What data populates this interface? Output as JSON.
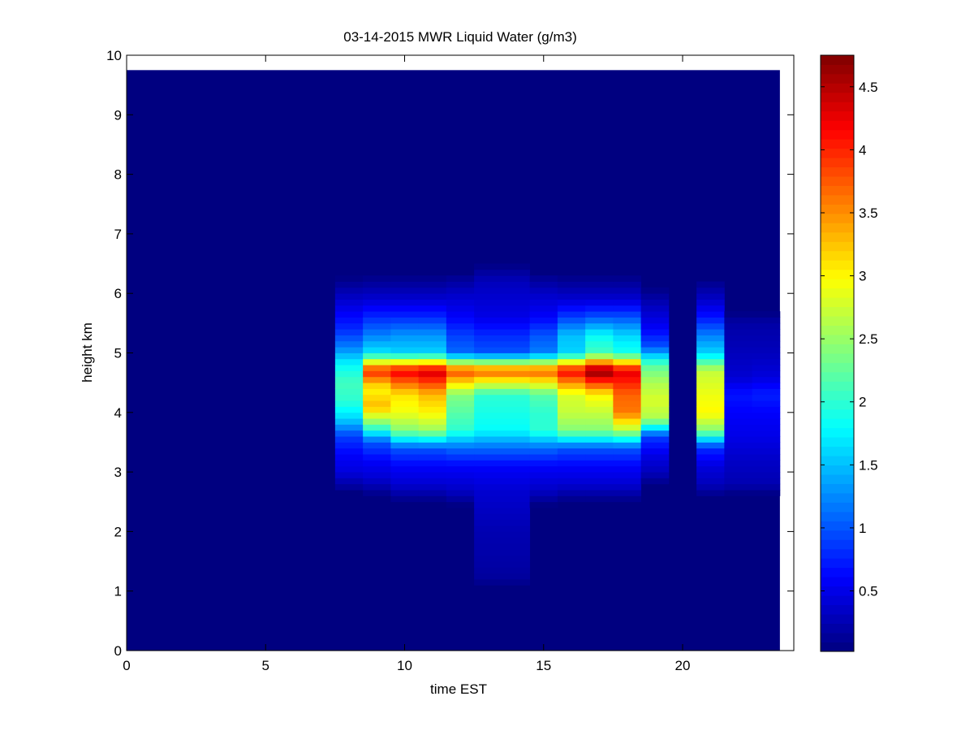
{
  "chart_data": {
    "type": "heatmap",
    "title": "03-14-2015 MWR Liquid Water (g/m3)",
    "xlabel": "time EST",
    "ylabel": "height km",
    "xlim": [
      0,
      24
    ],
    "ylim": [
      0,
      10
    ],
    "x_ticks": [
      "0",
      "5",
      "10",
      "15",
      "20"
    ],
    "y_ticks": [
      "0",
      "1",
      "2",
      "3",
      "4",
      "5",
      "6",
      "7",
      "8",
      "9",
      "10"
    ],
    "colorbar": {
      "colormap": "jet",
      "range": [
        0.02,
        4.75
      ],
      "ticks": [
        "0.5",
        "1",
        "1.5",
        "2",
        "2.5",
        "3",
        "3.5",
        "4",
        "4.5"
      ]
    },
    "data_extent": {
      "x_min": 0,
      "x_max": 23.5,
      "y_min": 0,
      "y_max": 9.75
    },
    "columns": [
      {
        "t": 8,
        "profile": [
          [
            3.0,
            0.45
          ],
          [
            3.3,
            0.6
          ],
          [
            3.6,
            0.9
          ],
          [
            3.9,
            1.6
          ],
          [
            4.2,
            2.0
          ],
          [
            4.5,
            2.1
          ],
          [
            4.8,
            1.8
          ],
          [
            5.1,
            1.2
          ],
          [
            5.4,
            0.8
          ],
          [
            5.7,
            0.55
          ]
        ]
      },
      {
        "t": 9,
        "profile": [
          [
            2.9,
            0.4
          ],
          [
            3.2,
            0.6
          ],
          [
            3.5,
            1.0
          ],
          [
            3.8,
            2.3
          ],
          [
            4.1,
            3.3
          ],
          [
            4.4,
            3.0
          ],
          [
            4.7,
            4.0
          ],
          [
            5.0,
            1.7
          ],
          [
            5.3,
            1.2
          ],
          [
            5.6,
            0.8
          ],
          [
            5.9,
            0.4
          ]
        ]
      },
      {
        "t": 10,
        "profile": [
          [
            2.8,
            0.4
          ],
          [
            3.1,
            0.6
          ],
          [
            3.4,
            1.0
          ],
          [
            3.7,
            2.4
          ],
          [
            4.0,
            2.9
          ],
          [
            4.3,
            3.1
          ],
          [
            4.7,
            4.25
          ],
          [
            5.0,
            1.6
          ],
          [
            5.3,
            1.3
          ],
          [
            5.6,
            0.8
          ],
          [
            5.9,
            0.4
          ]
        ]
      },
      {
        "t": 11,
        "profile": [
          [
            2.8,
            0.4
          ],
          [
            3.1,
            0.6
          ],
          [
            3.4,
            1.0
          ],
          [
            3.7,
            2.5
          ],
          [
            4.0,
            3.0
          ],
          [
            4.3,
            3.3
          ],
          [
            4.7,
            4.4
          ],
          [
            5.0,
            1.6
          ],
          [
            5.3,
            1.3
          ],
          [
            5.6,
            0.8
          ],
          [
            5.9,
            0.4
          ]
        ]
      },
      {
        "t": 12,
        "profile": [
          [
            2.7,
            0.35
          ],
          [
            3.1,
            0.6
          ],
          [
            3.4,
            1.1
          ],
          [
            3.7,
            2.0
          ],
          [
            4.0,
            2.2
          ],
          [
            4.3,
            2.4
          ],
          [
            4.7,
            3.85
          ],
          [
            5.0,
            1.1
          ],
          [
            5.3,
            0.9
          ],
          [
            5.6,
            0.6
          ],
          [
            6.0,
            0.35
          ]
        ]
      },
      {
        "t": 13,
        "profile": [
          [
            1.2,
            0.15
          ],
          [
            1.5,
            0.2
          ],
          [
            2.0,
            0.25
          ],
          [
            2.7,
            0.4
          ],
          [
            3.1,
            0.6
          ],
          [
            3.4,
            1.1
          ],
          [
            3.7,
            1.8
          ],
          [
            4.0,
            1.9
          ],
          [
            4.3,
            2.0
          ],
          [
            4.7,
            3.75
          ],
          [
            5.0,
            1.0
          ],
          [
            5.3,
            0.8
          ],
          [
            5.6,
            0.5
          ],
          [
            6.2,
            0.3
          ]
        ]
      },
      {
        "t": 14,
        "profile": [
          [
            1.2,
            0.15
          ],
          [
            1.5,
            0.2
          ],
          [
            2.0,
            0.25
          ],
          [
            2.7,
            0.4
          ],
          [
            3.1,
            0.6
          ],
          [
            3.4,
            1.1
          ],
          [
            3.7,
            1.8
          ],
          [
            4.0,
            1.9
          ],
          [
            4.3,
            2.0
          ],
          [
            4.7,
            3.75
          ],
          [
            5.0,
            1.0
          ],
          [
            5.3,
            0.8
          ],
          [
            5.6,
            0.5
          ],
          [
            6.2,
            0.3
          ]
        ]
      },
      {
        "t": 15,
        "profile": [
          [
            2.7,
            0.35
          ],
          [
            3.1,
            0.6
          ],
          [
            3.4,
            1.1
          ],
          [
            3.7,
            2.0
          ],
          [
            4.0,
            2.0
          ],
          [
            4.3,
            2.2
          ],
          [
            4.7,
            3.75
          ],
          [
            5.0,
            1.2
          ],
          [
            5.3,
            1.0
          ],
          [
            5.6,
            0.6
          ],
          [
            6.0,
            0.35
          ]
        ]
      },
      {
        "t": 16,
        "profile": [
          [
            2.8,
            0.4
          ],
          [
            3.1,
            0.6
          ],
          [
            3.4,
            1.0
          ],
          [
            3.7,
            2.4
          ],
          [
            4.0,
            2.7
          ],
          [
            4.3,
            2.8
          ],
          [
            4.7,
            4.2
          ],
          [
            5.0,
            1.6
          ],
          [
            5.3,
            1.5
          ],
          [
            5.6,
            0.9
          ],
          [
            5.9,
            0.4
          ]
        ]
      },
      {
        "t": 17,
        "profile": [
          [
            2.8,
            0.4
          ],
          [
            3.1,
            0.6
          ],
          [
            3.4,
            1.0
          ],
          [
            3.7,
            2.4
          ],
          [
            4.0,
            2.7
          ],
          [
            4.3,
            3.0
          ],
          [
            4.7,
            4.75
          ],
          [
            5.0,
            2.1
          ],
          [
            5.3,
            1.8
          ],
          [
            5.6,
            1.0
          ],
          [
            5.9,
            0.4
          ]
        ]
      },
      {
        "t": 18,
        "profile": [
          [
            2.8,
            0.4
          ],
          [
            3.1,
            0.6
          ],
          [
            3.4,
            1.0
          ],
          [
            3.7,
            2.6
          ],
          [
            4.0,
            3.6
          ],
          [
            4.3,
            3.7
          ],
          [
            4.7,
            4.3
          ],
          [
            5.0,
            1.9
          ],
          [
            5.3,
            1.6
          ],
          [
            5.6,
            1.0
          ],
          [
            5.9,
            0.4
          ]
        ]
      },
      {
        "t": 19,
        "profile": [
          [
            3.0,
            0.3
          ],
          [
            3.3,
            0.5
          ],
          [
            3.6,
            0.9
          ],
          [
            3.9,
            2.6
          ],
          [
            4.2,
            2.8
          ],
          [
            4.5,
            2.6
          ],
          [
            4.8,
            2.2
          ],
          [
            5.1,
            1.0
          ],
          [
            5.4,
            0.6
          ],
          [
            5.8,
            0.3
          ]
        ]
      },
      {
        "t": 21,
        "profile": [
          [
            2.8,
            0.3
          ],
          [
            3.1,
            0.45
          ],
          [
            3.4,
            0.8
          ],
          [
            3.7,
            2.4
          ],
          [
            4.0,
            3.0
          ],
          [
            4.3,
            2.9
          ],
          [
            4.7,
            2.7
          ],
          [
            5.0,
            1.6
          ],
          [
            5.3,
            1.2
          ],
          [
            5.6,
            0.7
          ],
          [
            5.9,
            0.35
          ]
        ]
      },
      {
        "t": 22,
        "profile": [
          [
            2.8,
            0.25
          ],
          [
            3.2,
            0.35
          ],
          [
            3.6,
            0.5
          ],
          [
            4.0,
            0.6
          ],
          [
            4.3,
            0.7
          ],
          [
            4.6,
            0.4
          ],
          [
            5.0,
            0.3
          ],
          [
            5.5,
            0.2
          ]
        ]
      },
      {
        "t": 23,
        "profile": [
          [
            2.8,
            0.25
          ],
          [
            3.2,
            0.35
          ],
          [
            3.6,
            0.5
          ],
          [
            4.0,
            0.6
          ],
          [
            4.3,
            0.75
          ],
          [
            4.6,
            0.45
          ],
          [
            5.0,
            0.3
          ],
          [
            5.5,
            0.2
          ]
        ]
      }
    ]
  }
}
